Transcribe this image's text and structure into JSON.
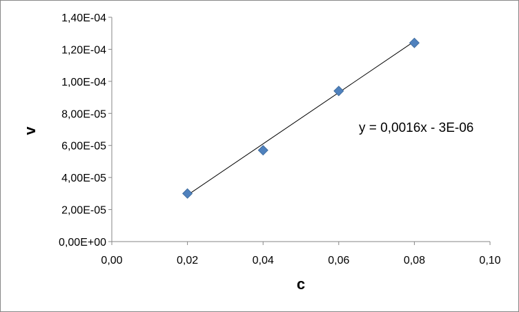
{
  "chart_data": {
    "type": "scatter",
    "title": "",
    "xlabel": "c",
    "ylabel": "v",
    "xlim": [
      0,
      0.1
    ],
    "ylim": [
      0,
      0.00014
    ],
    "x_ticks": [
      "0,00",
      "0,02",
      "0,04",
      "0,06",
      "0,08",
      "0,10"
    ],
    "y_ticks": [
      "0,00E+00",
      "2,00E-05",
      "4,00E-05",
      "6,00E-05",
      "8,00E-05",
      "1,00E-04",
      "1,20E-04",
      "1,40E-04"
    ],
    "grid": false,
    "legend": "none",
    "series": [
      {
        "x": [
          0.02,
          0.04,
          0.06,
          0.08
        ],
        "y": [
          3e-05,
          5.7e-05,
          9.4e-05,
          0.000124
        ],
        "marker": "diamond",
        "color": "#4F81BD"
      }
    ],
    "trendline": {
      "type": "linear",
      "slope": 0.0016,
      "intercept": -3e-06,
      "equation_label": "y = 0,0016x - 3E-06",
      "color": "#000000"
    }
  }
}
